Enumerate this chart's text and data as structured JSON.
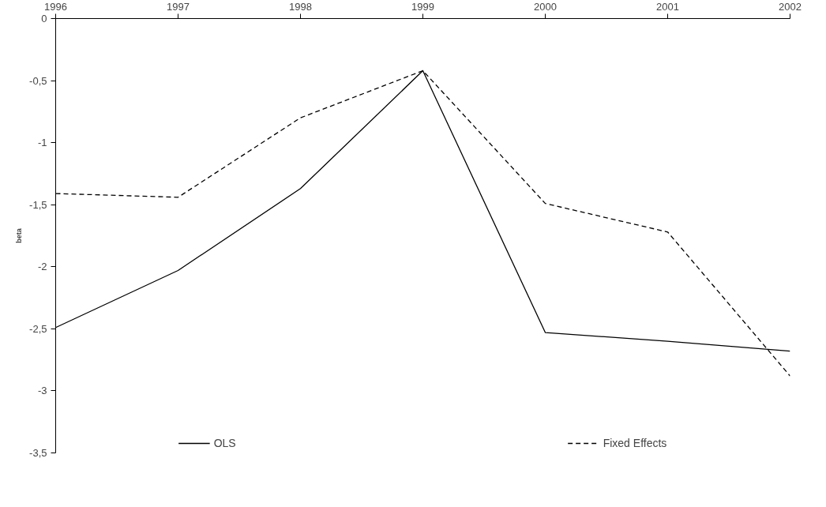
{
  "chart_data": {
    "type": "line",
    "ylabel": "beta",
    "categories": [
      "1996",
      "1997",
      "1998",
      "1999",
      "2000",
      "2001",
      "2002"
    ],
    "series": [
      {
        "name": "OLS",
        "color": "#000000",
        "line_style": "solid",
        "values": [
          -2.49,
          -2.03,
          -1.37,
          -0.42,
          -2.53,
          -2.6,
          -2.68
        ]
      },
      {
        "name": "Fixed Effects",
        "color": "#000000",
        "line_style": "dashed",
        "values": [
          -1.41,
          -1.44,
          -0.8,
          -0.42,
          -1.49,
          -1.72,
          -2.88
        ]
      }
    ],
    "ylim": [
      -3.5,
      0
    ],
    "yticks": [
      {
        "value": -3.5,
        "label": "-3,5"
      },
      {
        "value": -3,
        "label": "-3"
      },
      {
        "value": -2.5,
        "label": "-2,5"
      },
      {
        "value": -2,
        "label": "-2"
      },
      {
        "value": -1.5,
        "label": "-1,5"
      },
      {
        "value": -1,
        "label": "-1"
      },
      {
        "value": -0.5,
        "label": "-0,5"
      },
      {
        "value": 0,
        "label": "0"
      }
    ],
    "grid": false,
    "legend": "bottom",
    "marker": "none"
  }
}
